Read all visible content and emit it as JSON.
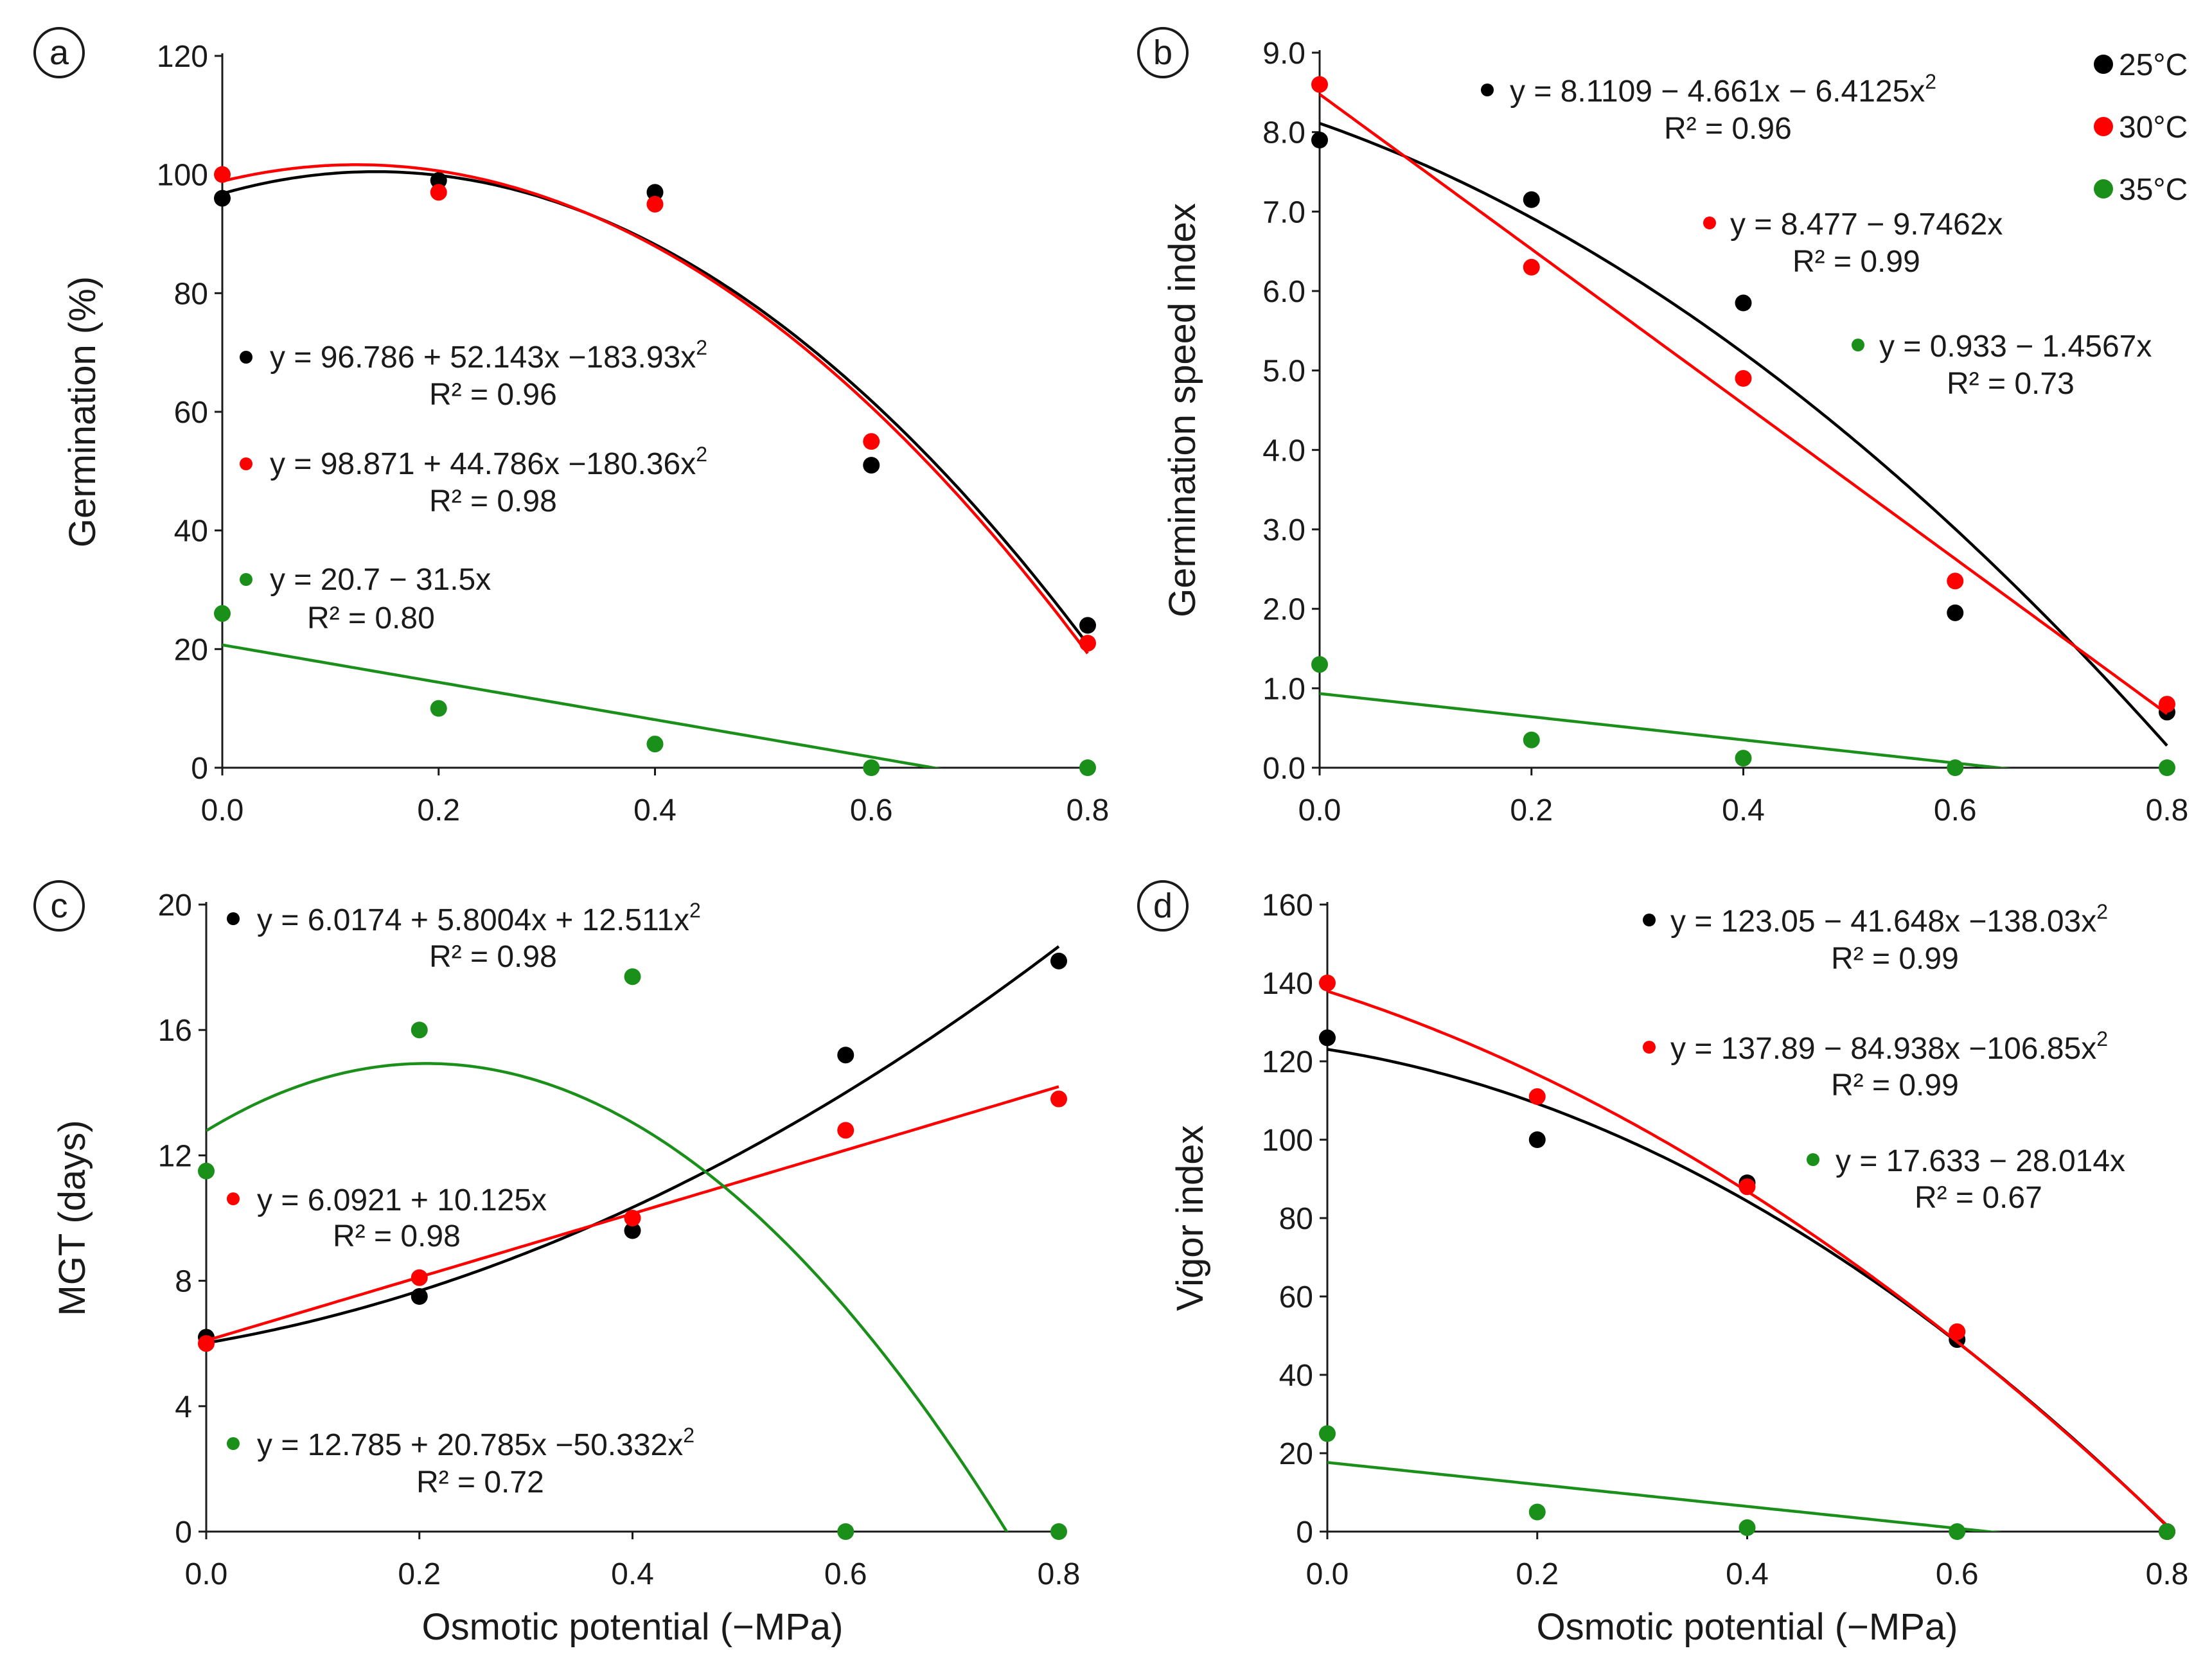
{
  "colors": {
    "c25": "#000000",
    "c30": "#ff0000",
    "c35": "#1a8f1a"
  },
  "legend": [
    {
      "label": "25°C",
      "color": "#000000"
    },
    {
      "label": "30°C",
      "color": "#ff0000"
    },
    {
      "label": "35°C",
      "color": "#1a8f1a"
    }
  ],
  "chart_data": [
    {
      "panel": "a",
      "type": "scatter",
      "xlabel": "",
      "ylabel": "Germination (%)",
      "xlim": [
        0,
        0.8
      ],
      "ylim": [
        0,
        120
      ],
      "xticks": [
        "0.0",
        "0.2",
        "0.4",
        "0.6",
        "0.8"
      ],
      "yticks": [
        "0",
        "20",
        "40",
        "60",
        "80",
        "100",
        "120"
      ],
      "x": [
        0,
        0.2,
        0.4,
        0.6,
        0.8
      ],
      "series": [
        {
          "name": "25°C",
          "values": [
            96,
            99,
            97,
            51,
            24
          ],
          "fit": {
            "a": 96.786,
            "b": 52.143,
            "c": -183.93
          },
          "equation": "y = 96.786 + 52.143x −183.93x",
          "r2": "R² = 0.96"
        },
        {
          "name": "30°C",
          "values": [
            100,
            97,
            95,
            55,
            21
          ],
          "fit": {
            "a": 98.871,
            "b": 44.786,
            "c": -180.36
          },
          "equation": "y = 98.871 + 44.786x −180.36x",
          "r2": "R² = 0.98"
        },
        {
          "name": "35°C",
          "values": [
            26,
            10,
            4,
            0,
            0
          ],
          "fit": {
            "a": 20.7,
            "b": -31.5,
            "c": 0
          },
          "equation": "y = 20.7 − 31.5x",
          "r2": "R² = 0.80"
        }
      ]
    },
    {
      "panel": "b",
      "type": "scatter",
      "xlabel": "",
      "ylabel": "Germination speed index",
      "xlim": [
        0,
        0.8
      ],
      "ylim": [
        0,
        9
      ],
      "xticks": [
        "0.0",
        "0.2",
        "0.4",
        "0.6",
        "0.8"
      ],
      "yticks": [
        "0.0",
        "1.0",
        "2.0",
        "3.0",
        "4.0",
        "5.0",
        "6.0",
        "7.0",
        "8.0",
        "9.0"
      ],
      "x": [
        0,
        0.2,
        0.4,
        0.6,
        0.8
      ],
      "series": [
        {
          "name": "25°C",
          "values": [
            7.9,
            7.15,
            5.85,
            1.95,
            0.7
          ],
          "fit": {
            "a": 8.1109,
            "b": -4.661,
            "c": -6.4125
          },
          "equation": "y = 8.1109 − 4.661x − 6.4125x",
          "r2": "R² = 0.96"
        },
        {
          "name": "30°C",
          "values": [
            8.6,
            6.3,
            4.9,
            2.35,
            0.8
          ],
          "fit": {
            "a": 8.477,
            "b": -9.7462,
            "c": 0
          },
          "equation": "y = 8.477 − 9.7462x",
          "r2": "R² = 0.99"
        },
        {
          "name": "35°C",
          "values": [
            1.3,
            0.35,
            0.12,
            0,
            0
          ],
          "fit": {
            "a": 0.933,
            "b": -1.4567,
            "c": 0
          },
          "equation": "y = 0.933 − 1.4567x",
          "r2": "R² = 0.73"
        }
      ]
    },
    {
      "panel": "c",
      "type": "scatter",
      "xlabel": "Osmotic potential (−MPa)",
      "ylabel": "MGT (days)",
      "xlim": [
        0,
        0.8
      ],
      "ylim": [
        0,
        20
      ],
      "xticks": [
        "0.0",
        "0.2",
        "0.4",
        "0.6",
        "0.8"
      ],
      "yticks": [
        "0",
        "4",
        "8",
        "12",
        "16",
        "20"
      ],
      "x": [
        0,
        0.2,
        0.4,
        0.6,
        0.8
      ],
      "series": [
        {
          "name": "25°C",
          "values": [
            6.2,
            7.5,
            9.6,
            15.2,
            18.2
          ],
          "fit": {
            "a": 6.0174,
            "b": 5.8004,
            "c": 12.511
          },
          "equation": "y =  6.0174 + 5.8004x + 12.511x",
          "r2": "R² = 0.98"
        },
        {
          "name": "30°C",
          "values": [
            6.0,
            8.1,
            10.0,
            12.8,
            13.8
          ],
          "fit": {
            "a": 6.0921,
            "b": 10.125,
            "c": 0
          },
          "equation": "y = 6.0921 + 10.125x",
          "r2": "R² = 0.98"
        },
        {
          "name": "35°C",
          "values": [
            11.5,
            16.0,
            17.7,
            0,
            0
          ],
          "fit": {
            "a": 12.785,
            "b": 20.785,
            "c": -50.332
          },
          "equation": "y = 12.785 + 20.785x −50.332x",
          "r2": "R² = 0.72"
        }
      ]
    },
    {
      "panel": "d",
      "type": "scatter",
      "xlabel": "Osmotic potential (−MPa)",
      "ylabel": "Vigor index",
      "xlim": [
        0,
        0.8
      ],
      "ylim": [
        0,
        160
      ],
      "xticks": [
        "0.0",
        "0.2",
        "0.4",
        "0.6",
        "0.8"
      ],
      "yticks": [
        "0",
        "20",
        "40",
        "60",
        "80",
        "100",
        "120",
        "140",
        "160"
      ],
      "x": [
        0,
        0.2,
        0.4,
        0.6,
        0.8
      ],
      "series": [
        {
          "name": "25°C",
          "values": [
            126,
            100,
            89,
            49,
            0
          ],
          "fit": {
            "a": 123.05,
            "b": -41.648,
            "c": -138.03
          },
          "equation": "y = 123.05 − 41.648x −138.03x",
          "r2": "R² = 0.99"
        },
        {
          "name": "30°C",
          "values": [
            140,
            111,
            88,
            51,
            0
          ],
          "fit": {
            "a": 137.89,
            "b": -84.938,
            "c": -106.85
          },
          "equation": "y = 137.89 − 84.938x −106.85x",
          "r2": "R² = 0.99"
        },
        {
          "name": "35°C",
          "values": [
            25,
            5,
            1,
            0,
            0
          ],
          "fit": {
            "a": 17.633,
            "b": -28.014,
            "c": 0
          },
          "equation": "y = 17.633 − 28.014x",
          "r2": "R² = 0.67"
        }
      ]
    }
  ]
}
